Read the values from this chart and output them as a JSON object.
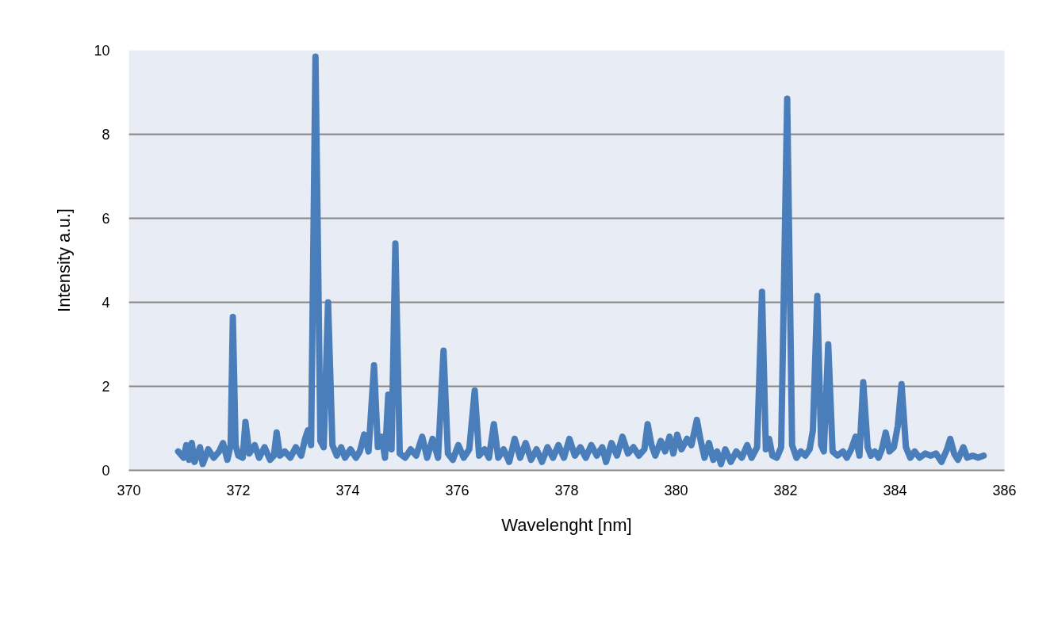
{
  "chart_data": {
    "type": "line",
    "xlabel": "Wavelenght [nm]",
    "ylabel": "Intensity a.u.]",
    "xlim": [
      370,
      386
    ],
    "xticks": [
      370,
      372,
      374,
      376,
      378,
      380,
      382,
      384,
      386
    ],
    "ylim": [
      0,
      10
    ],
    "yticks": [
      0,
      2,
      4,
      6,
      8,
      10
    ],
    "grid": "y",
    "marker": "none",
    "line_style": "solid",
    "x": [
      370.9,
      371.0,
      371.05,
      371.1,
      371.15,
      371.2,
      371.3,
      371.35,
      371.45,
      371.55,
      371.65,
      371.72,
      371.8,
      371.86,
      371.9,
      371.95,
      372.0,
      372.08,
      372.13,
      372.2,
      372.3,
      372.38,
      372.48,
      372.58,
      372.65,
      372.7,
      372.76,
      372.85,
      372.95,
      373.05,
      373.15,
      373.22,
      373.27,
      373.33,
      373.41,
      373.5,
      373.56,
      373.64,
      373.72,
      373.8,
      373.88,
      373.95,
      374.05,
      374.15,
      374.22,
      374.3,
      374.38,
      374.48,
      374.55,
      374.62,
      374.68,
      374.74,
      374.8,
      374.87,
      374.95,
      375.05,
      375.15,
      375.25,
      375.36,
      375.45,
      375.55,
      375.65,
      375.75,
      375.83,
      375.92,
      376.02,
      376.12,
      376.22,
      376.32,
      376.4,
      376.5,
      376.58,
      376.67,
      376.75,
      376.85,
      376.95,
      377.05,
      377.15,
      377.25,
      377.35,
      377.45,
      377.55,
      377.65,
      377.75,
      377.85,
      377.95,
      378.05,
      378.15,
      378.25,
      378.35,
      378.45,
      378.55,
      378.65,
      378.72,
      378.82,
      378.92,
      379.02,
      379.12,
      379.22,
      379.32,
      379.42,
      379.48,
      379.55,
      379.62,
      379.72,
      379.8,
      379.88,
      379.95,
      380.02,
      380.1,
      380.2,
      380.28,
      380.38,
      380.45,
      380.52,
      380.6,
      380.68,
      380.75,
      380.82,
      380.9,
      381.0,
      381.1,
      381.2,
      381.3,
      381.38,
      381.48,
      381.57,
      381.64,
      381.7,
      381.76,
      381.84,
      381.92,
      382.03,
      382.12,
      382.2,
      382.28,
      382.36,
      382.44,
      382.5,
      382.58,
      382.65,
      382.7,
      382.78,
      382.86,
      382.95,
      383.05,
      383.12,
      383.2,
      383.28,
      383.35,
      383.42,
      383.5,
      383.56,
      383.63,
      383.7,
      383.76,
      383.83,
      383.9,
      383.98,
      384.05,
      384.12,
      384.2,
      384.28,
      384.36,
      384.45,
      384.55,
      384.65,
      384.75,
      384.85,
      384.95,
      385.01,
      385.08,
      385.15,
      385.25,
      385.32,
      385.42,
      385.52,
      385.62
    ],
    "series": [
      {
        "color": "#4a7ebb",
        "values": [
          0.45,
          0.3,
          0.6,
          0.25,
          0.65,
          0.2,
          0.55,
          0.15,
          0.5,
          0.3,
          0.45,
          0.65,
          0.25,
          0.6,
          3.65,
          0.6,
          0.35,
          0.3,
          1.15,
          0.4,
          0.6,
          0.3,
          0.55,
          0.25,
          0.35,
          0.9,
          0.35,
          0.45,
          0.3,
          0.55,
          0.35,
          0.75,
          0.95,
          0.6,
          9.85,
          0.7,
          0.55,
          4.0,
          0.6,
          0.35,
          0.55,
          0.3,
          0.5,
          0.3,
          0.45,
          0.85,
          0.45,
          2.5,
          0.55,
          0.8,
          0.3,
          1.8,
          0.5,
          5.4,
          0.4,
          0.3,
          0.5,
          0.35,
          0.8,
          0.3,
          0.75,
          0.3,
          2.85,
          0.4,
          0.25,
          0.6,
          0.3,
          0.5,
          1.9,
          0.35,
          0.5,
          0.3,
          1.1,
          0.3,
          0.5,
          0.2,
          0.75,
          0.3,
          0.65,
          0.25,
          0.5,
          0.2,
          0.55,
          0.3,
          0.6,
          0.3,
          0.75,
          0.35,
          0.55,
          0.3,
          0.6,
          0.35,
          0.55,
          0.2,
          0.65,
          0.35,
          0.8,
          0.4,
          0.55,
          0.35,
          0.5,
          1.1,
          0.6,
          0.35,
          0.7,
          0.45,
          0.8,
          0.4,
          0.85,
          0.5,
          0.75,
          0.6,
          1.2,
          0.7,
          0.3,
          0.65,
          0.25,
          0.45,
          0.15,
          0.5,
          0.2,
          0.45,
          0.3,
          0.6,
          0.3,
          0.55,
          4.25,
          0.5,
          0.75,
          0.35,
          0.3,
          0.55,
          8.85,
          0.6,
          0.3,
          0.45,
          0.35,
          0.5,
          0.95,
          4.15,
          0.6,
          0.45,
          3.0,
          0.45,
          0.35,
          0.45,
          0.3,
          0.5,
          0.8,
          0.35,
          2.1,
          0.55,
          0.35,
          0.45,
          0.3,
          0.5,
          0.9,
          0.45,
          0.55,
          1.05,
          2.05,
          0.55,
          0.3,
          0.45,
          0.3,
          0.4,
          0.35,
          0.4,
          0.2,
          0.5,
          0.75,
          0.4,
          0.25,
          0.55,
          0.3,
          0.35,
          0.3,
          0.35
        ]
      }
    ]
  }
}
